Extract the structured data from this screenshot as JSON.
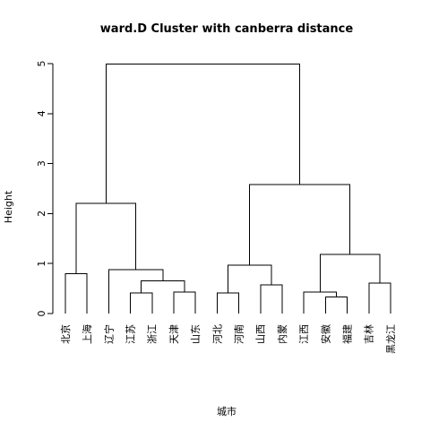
{
  "chart_data": {
    "type": "dendrogram",
    "title": "ward.D Cluster with canberra distance",
    "xlabel": "城市",
    "ylabel": "Height",
    "ylim": [
      0,
      5
    ],
    "yticks": [
      0,
      1,
      2,
      3,
      4,
      5
    ],
    "grid": false,
    "leaves": [
      "北京",
      "上海",
      "辽宁",
      "江苏",
      "浙江",
      "天津",
      "山东",
      "河北",
      "河南",
      "山西",
      "内蒙",
      "江西",
      "安徽",
      "福建",
      "吉林",
      "黑龙江"
    ],
    "merges": [
      {
        "a": "L1",
        "b": "L2",
        "height": 0.8
      },
      {
        "a": "L4",
        "b": "L5",
        "height": 0.41
      },
      {
        "a": "L6",
        "b": "L7",
        "height": 0.43
      },
      {
        "a": "M2",
        "b": "M3",
        "height": 0.65
      },
      {
        "a": "L3",
        "b": "M4",
        "height": 0.88
      },
      {
        "a": "M1",
        "b": "M5",
        "height": 2.2
      },
      {
        "a": "L8",
        "b": "L9",
        "height": 0.41
      },
      {
        "a": "L10",
        "b": "L11",
        "height": 0.57
      },
      {
        "a": "M7",
        "b": "M8",
        "height": 0.97
      },
      {
        "a": "L13",
        "b": "L14",
        "height": 0.33
      },
      {
        "a": "L12",
        "b": "M10",
        "height": 0.43
      },
      {
        "a": "L15",
        "b": "L16",
        "height": 0.61
      },
      {
        "a": "M11",
        "b": "M12",
        "height": 1.18
      },
      {
        "a": "M9",
        "b": "M13",
        "height": 2.58
      },
      {
        "a": "M6",
        "b": "M14",
        "height": 4.99
      }
    ]
  }
}
